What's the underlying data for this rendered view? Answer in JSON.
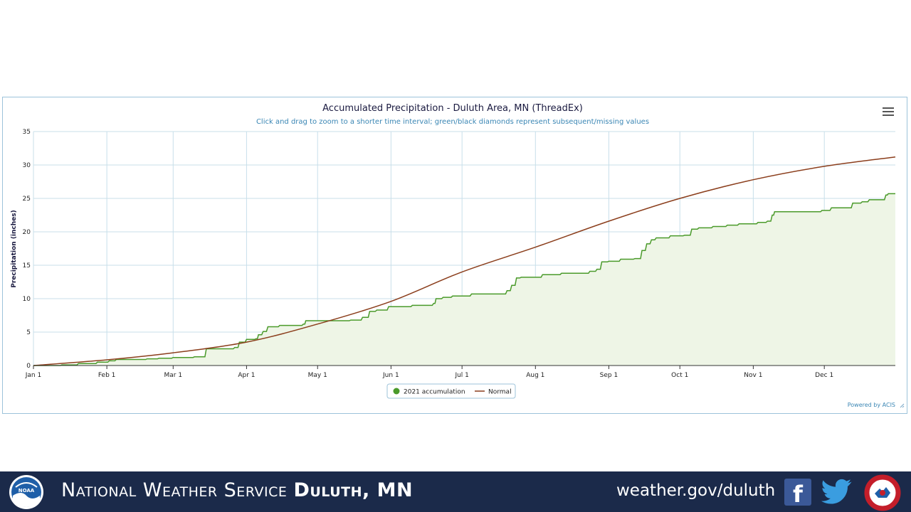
{
  "chart_data": {
    "type": "line",
    "title": "Accumulated Precipitation - Duluth Area, MN (ThreadEx)",
    "subtitle": "Click and drag to zoom to a shorter time interval; green/black diamonds represent subsequent/missing values",
    "ylabel": "Precipitation (inches)",
    "xlabel": "",
    "ylim": [
      0,
      35
    ],
    "yticks": [
      "0",
      "5",
      "10",
      "15",
      "20",
      "25",
      "30",
      "35"
    ],
    "xtick_labels": [
      "Jan 1",
      "Feb 1",
      "Mar 1",
      "Apr 1",
      "May 1",
      "Jun 1",
      "Jul 1",
      "Aug 1",
      "Sep 1",
      "Oct 1",
      "Nov 1",
      "Dec 1"
    ],
    "xtick_days": [
      0,
      31,
      59,
      90,
      120,
      151,
      181,
      212,
      243,
      273,
      304,
      334
    ],
    "xlim_days": [
      0,
      364
    ],
    "grid": true,
    "legend_placement": "bottom-center",
    "series": [
      {
        "name": "2021 accumulation",
        "color": "#4a9a2a",
        "fill": "#eef5e6",
        "step": true,
        "points": [
          [
            "Jan 1",
            0
          ],
          [
            "Jan 13",
            0.1
          ],
          [
            "Jan 20",
            0.3
          ],
          [
            "Jan 28",
            0.5
          ],
          [
            "Feb 2",
            0.7
          ],
          [
            "Feb 5",
            0.9
          ],
          [
            "Feb 18",
            1.0
          ],
          [
            "Feb 23",
            1.1
          ],
          [
            "Mar 1",
            1.2
          ],
          [
            "Mar 10",
            1.3
          ],
          [
            "Mar 15",
            2.5
          ],
          [
            "Mar 27",
            2.7
          ],
          [
            "Mar 29",
            3.5
          ],
          [
            "Apr 1",
            3.9
          ],
          [
            "Apr 5",
            4.0
          ],
          [
            "Apr 6",
            4.6
          ],
          [
            "Apr 8",
            5.1
          ],
          [
            "Apr 10",
            5.8
          ],
          [
            "Apr 15",
            6.0
          ],
          [
            "Apr 25",
            6.2
          ],
          [
            "Apr 26",
            6.7
          ],
          [
            "May 15",
            6.8
          ],
          [
            "May 20",
            7.2
          ],
          [
            "May 23",
            8.1
          ],
          [
            "May 26",
            8.3
          ],
          [
            "May 31",
            8.8
          ],
          [
            "Jun 10",
            9.0
          ],
          [
            "Jun 19",
            9.3
          ],
          [
            "Jun 20",
            10.0
          ],
          [
            "Jun 23",
            10.2
          ],
          [
            "Jun 27",
            10.4
          ],
          [
            "Jul 5",
            10.7
          ],
          [
            "Jul 20",
            11.2
          ],
          [
            "Jul 22",
            12.0
          ],
          [
            "Jul 24",
            13.1
          ],
          [
            "Jul 26",
            13.2
          ],
          [
            "Aug 4",
            13.6
          ],
          [
            "Aug 12",
            13.8
          ],
          [
            "Aug 24",
            14.1
          ],
          [
            "Aug 27",
            14.4
          ],
          [
            "Aug 29",
            15.5
          ],
          [
            "Sep 1",
            15.6
          ],
          [
            "Sep 6",
            15.9
          ],
          [
            "Sep 12",
            16.0
          ],
          [
            "Sep 15",
            17.2
          ],
          [
            "Sep 17",
            18.2
          ],
          [
            "Sep 19",
            18.8
          ],
          [
            "Sep 21",
            19.1
          ],
          [
            "Sep 27",
            19.4
          ],
          [
            "Oct 3",
            19.5
          ],
          [
            "Oct 6",
            20.4
          ],
          [
            "Oct 9",
            20.6
          ],
          [
            "Oct 15",
            20.8
          ],
          [
            "Oct 21",
            21.0
          ],
          [
            "Oct 26",
            21.2
          ],
          [
            "Nov 3",
            21.4
          ],
          [
            "Nov 7",
            21.6
          ],
          [
            "Nov 9",
            22.5
          ],
          [
            "Nov 10",
            23.0
          ],
          [
            "Nov 30",
            23.2
          ],
          [
            "Dec 4",
            23.6
          ],
          [
            "Dec 13",
            24.3
          ],
          [
            "Dec 17",
            24.5
          ],
          [
            "Dec 20",
            24.8
          ],
          [
            "Dec 27",
            25.5
          ],
          [
            "Dec 28",
            25.7
          ],
          [
            "Dec 31",
            25.7
          ]
        ]
      },
      {
        "name": "Normal",
        "color": "#8b3e1c",
        "step": false,
        "points": [
          [
            "Jan 1",
            0
          ],
          [
            "Feb 1",
            0.85
          ],
          [
            "Mar 1",
            1.9
          ],
          [
            "Apr 1",
            3.5
          ],
          [
            "May 1",
            6.2
          ],
          [
            "Jun 1",
            9.6
          ],
          [
            "Jul 1",
            14.0
          ],
          [
            "Aug 1",
            17.7
          ],
          [
            "Sep 1",
            21.6
          ],
          [
            "Oct 1",
            25.0
          ],
          [
            "Nov 1",
            27.8
          ],
          [
            "Dec 1",
            29.8
          ],
          [
            "Dec 31",
            31.2
          ]
        ]
      }
    ]
  },
  "credit": "Powered by ACIS",
  "menu_icon": "hamburger-menu-icon",
  "footer": {
    "org_name": "National Weather Service",
    "location": "Duluth, MN",
    "url": "weather.gov/duluth",
    "facebook_icon": "facebook-icon",
    "twitter_icon": "twitter-icon",
    "noaa_logo_text": "NOAA",
    "nws_logo_text": "NATIONAL WEATHER SERVICE",
    "background_color": "#1b2a4a"
  }
}
